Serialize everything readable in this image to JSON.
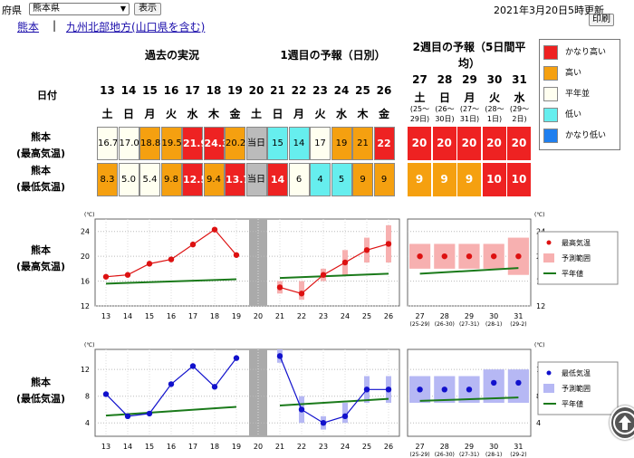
{
  "header": {
    "pref_label": "府県",
    "pref_select": "熊本県",
    "show_button": "表示",
    "updated": "2021年3月20日5時更新",
    "print_button": "印刷",
    "link_local": "熊本",
    "link_region": "九州北部地方(山口県を含む)"
  },
  "sections": {
    "past": "過去の実況",
    "week1": "1週目の予報（日別）",
    "week2": "2週目の予報（5日間平均）"
  },
  "date_label": "日付",
  "days": [
    {
      "d": "13",
      "w": "土"
    },
    {
      "d": "14",
      "w": "日"
    },
    {
      "d": "15",
      "w": "月"
    },
    {
      "d": "16",
      "w": "火"
    },
    {
      "d": "17",
      "w": "水"
    },
    {
      "d": "18",
      "w": "木"
    },
    {
      "d": "19",
      "w": "金"
    },
    {
      "d": "20",
      "w": "土"
    },
    {
      "d": "21",
      "w": "日"
    },
    {
      "d": "22",
      "w": "月"
    },
    {
      "d": "23",
      "w": "火"
    },
    {
      "d": "24",
      "w": "水"
    },
    {
      "d": "25",
      "w": "木"
    },
    {
      "d": "26",
      "w": "金"
    }
  ],
  "week2_days": [
    {
      "d": "27",
      "w": "土",
      "r1": "(25〜",
      "r2": "29日)"
    },
    {
      "d": "28",
      "w": "日",
      "r1": "(26〜",
      "r2": "30日)"
    },
    {
      "d": "29",
      "w": "月",
      "r1": "(27〜",
      "r2": "31日)"
    },
    {
      "d": "30",
      "w": "火",
      "r1": "(28〜",
      "r2": "1日)"
    },
    {
      "d": "31",
      "w": "水",
      "r1": "(29〜",
      "r2": "2日)"
    }
  ],
  "rows": {
    "max_label_1": "熊本",
    "max_label_2": "(最高気温)",
    "min_label_1": "熊本",
    "min_label_2": "(最低気温)"
  },
  "max_table": [
    {
      "t": "16.7",
      "c": "#fffff0",
      "b": false
    },
    {
      "t": "17.0",
      "c": "#fffff0",
      "b": false
    },
    {
      "t": "18.8",
      "c": "#f5a010",
      "b": false
    },
    {
      "t": "19.5",
      "c": "#f5a010",
      "b": false
    },
    {
      "t": "21.9",
      "c": "#ee2222",
      "b": true
    },
    {
      "t": "24.3",
      "c": "#ee2222",
      "b": true
    },
    {
      "t": "20.2",
      "c": "#f5a010",
      "b": false
    },
    {
      "t": "当日",
      "c": "#bbbbbb",
      "b": false
    },
    {
      "t": "15",
      "c": "#66eeee",
      "b": false
    },
    {
      "t": "14",
      "c": "#66eeee",
      "b": false
    },
    {
      "t": "17",
      "c": "#fffff0",
      "b": false
    },
    {
      "t": "19",
      "c": "#f5a010",
      "b": false
    },
    {
      "t": "21",
      "c": "#f5a010",
      "b": false
    },
    {
      "t": "22",
      "c": "#ee2222",
      "b": true
    }
  ],
  "min_table": [
    {
      "t": "8.3",
      "c": "#f5a010",
      "b": false
    },
    {
      "t": "5.0",
      "c": "#fffff0",
      "b": false
    },
    {
      "t": "5.4",
      "c": "#fffff0",
      "b": false
    },
    {
      "t": "9.8",
      "c": "#f5a010",
      "b": false
    },
    {
      "t": "12.5",
      "c": "#ee2222",
      "b": true
    },
    {
      "t": "9.4",
      "c": "#f5a010",
      "b": false
    },
    {
      "t": "13.7",
      "c": "#ee2222",
      "b": true
    },
    {
      "t": "当日",
      "c": "#bbbbbb",
      "b": false
    },
    {
      "t": "14",
      "c": "#ee2222",
      "b": true
    },
    {
      "t": "6",
      "c": "#fffff0",
      "b": false
    },
    {
      "t": "4",
      "c": "#66eeee",
      "b": false
    },
    {
      "t": "5",
      "c": "#66eeee",
      "b": false
    },
    {
      "t": "9",
      "c": "#f5a010",
      "b": false
    },
    {
      "t": "9",
      "c": "#f5a010",
      "b": false
    }
  ],
  "week2_max": [
    "20",
    "20",
    "20",
    "20",
    "20"
  ],
  "week2_min": [
    "9",
    "9",
    "9",
    "10",
    "10"
  ],
  "week2_max_colors": [
    "#ee2222",
    "#ee2222",
    "#ee2222",
    "#ee2222",
    "#ee2222"
  ],
  "week2_min_colors": [
    "#f5a010",
    "#f5a010",
    "#f5a010",
    "#ee2222",
    "#ee2222"
  ],
  "legend": [
    {
      "label": "かなり高い",
      "color": "#ee2222"
    },
    {
      "label": "高い",
      "color": "#f5a010"
    },
    {
      "label": "平年並",
      "color": "#fffff0"
    },
    {
      "label": "低い",
      "color": "#66eeee"
    },
    {
      "label": "かなり低い",
      "color": "#1f7fef"
    }
  ],
  "chart_data": [
    {
      "type": "line",
      "name": "max",
      "unit": "(℃)",
      "x": [
        "13",
        "14",
        "15",
        "16",
        "17",
        "18",
        "19",
        "20",
        "21",
        "22",
        "23",
        "24",
        "25",
        "26"
      ],
      "ylim": [
        12,
        26
      ],
      "yticks": [
        12,
        16,
        20,
        24
      ],
      "observed": [
        16.7,
        17.0,
        18.8,
        19.5,
        21.9,
        24.3,
        20.2
      ],
      "forecast": [
        15,
        14,
        17,
        19,
        21,
        22
      ],
      "forecast_range": [
        [
          14,
          16
        ],
        [
          13,
          16
        ],
        [
          16,
          18
        ],
        [
          17,
          21
        ],
        [
          19,
          23
        ],
        [
          19,
          25
        ]
      ],
      "normal_left": [
        15.6,
        16.3
      ],
      "normal_right": [
        16.5,
        17.2
      ],
      "week2_x": [
        "27",
        "28",
        "29",
        "30",
        "31"
      ],
      "week2_sub": [
        "(25-29)",
        "(26-30)",
        "(27-31)",
        "(28-1)",
        "(29-2)"
      ],
      "week2_values": [
        20,
        20,
        20,
        20,
        20
      ],
      "week2_range": [
        [
          18,
          22
        ],
        [
          18,
          22
        ],
        [
          18,
          22
        ],
        [
          18,
          22
        ],
        [
          17,
          23
        ]
      ],
      "week2_normal": [
        17.2,
        18.1
      ],
      "legend": [
        "最高気温",
        "予測範囲",
        "平年値"
      ],
      "color": "#dd1111",
      "range_color": "#f7b0b0"
    },
    {
      "type": "line",
      "name": "min",
      "unit": "(℃)",
      "x": [
        "13",
        "14",
        "15",
        "16",
        "17",
        "18",
        "19",
        "20",
        "21",
        "22",
        "23",
        "24",
        "25",
        "26"
      ],
      "ylim": [
        2,
        15
      ],
      "yticks": [
        4,
        8,
        12
      ],
      "observed": [
        8.3,
        5.0,
        5.4,
        9.8,
        12.5,
        9.4,
        13.7
      ],
      "forecast": [
        14,
        6,
        4,
        5,
        9,
        9
      ],
      "forecast_range": [
        [
          13,
          15
        ],
        [
          4,
          8
        ],
        [
          3,
          5
        ],
        [
          4,
          7
        ],
        [
          7,
          11
        ],
        [
          7,
          11
        ]
      ],
      "normal_left": [
        5.1,
        6.4
      ],
      "normal_right": [
        6.6,
        7.6
      ],
      "week2_x": [
        "27",
        "28",
        "29",
        "30",
        "31"
      ],
      "week2_sub": [
        "(25-29)",
        "(26-30)",
        "(27-31)",
        "(28-1)",
        "(29-2)"
      ],
      "week2_values": [
        9,
        9,
        9,
        10,
        10
      ],
      "week2_range": [
        [
          7,
          11
        ],
        [
          7,
          11
        ],
        [
          7,
          11
        ],
        [
          7,
          12
        ],
        [
          7,
          12
        ]
      ],
      "week2_normal": [
        7.3,
        7.8
      ],
      "legend": [
        "最低気温",
        "予測範囲",
        "平年値"
      ],
      "color": "#1111cc",
      "range_color": "#b6b8f4"
    }
  ]
}
